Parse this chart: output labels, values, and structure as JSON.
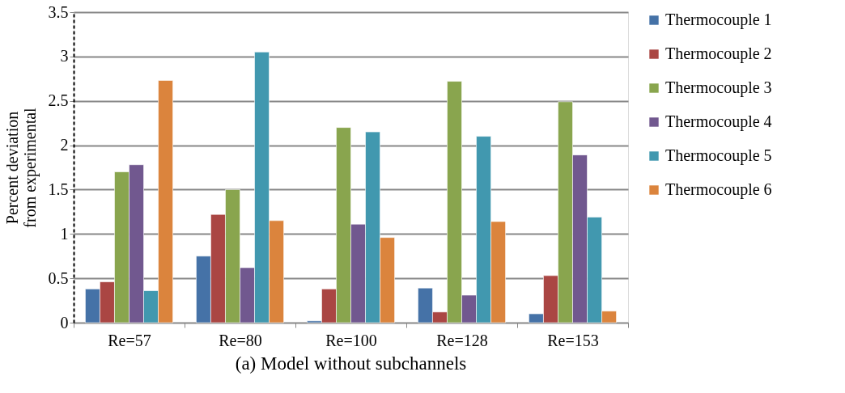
{
  "chart_data": {
    "type": "bar",
    "title": "(a)  Model without subchannels",
    "ylabel": "Percent deviation from experimental",
    "categories": [
      "Re=57",
      "Re=80",
      "Re=100",
      "Re=128",
      "Re=153"
    ],
    "series": [
      {
        "name": "Thermocouple 1",
        "color": "#4572a7",
        "values": [
          0.38,
          0.75,
          0.02,
          0.39,
          0.1
        ]
      },
      {
        "name": "Thermocouple 2",
        "color": "#aa4643",
        "values": [
          0.46,
          1.22,
          0.38,
          0.12,
          0.53
        ]
      },
      {
        "name": "Thermocouple 3",
        "color": "#89a54e",
        "values": [
          1.7,
          1.5,
          2.2,
          2.72,
          2.49
        ]
      },
      {
        "name": "Thermocouple 4",
        "color": "#71588f",
        "values": [
          1.78,
          0.62,
          1.11,
          0.31,
          1.89
        ]
      },
      {
        "name": "Thermocouple 5",
        "color": "#4198af",
        "values": [
          0.36,
          3.05,
          2.15,
          2.1,
          1.19
        ]
      },
      {
        "name": "Thermocouple 6",
        "color": "#db843d",
        "values": [
          2.73,
          1.15,
          0.96,
          1.14,
          0.13
        ]
      }
    ],
    "ylim": [
      0,
      3.5
    ],
    "yticks": [
      0,
      0.5,
      1,
      1.5,
      2,
      2.5,
      3,
      3.5
    ],
    "grid": "y",
    "legend": "right"
  }
}
